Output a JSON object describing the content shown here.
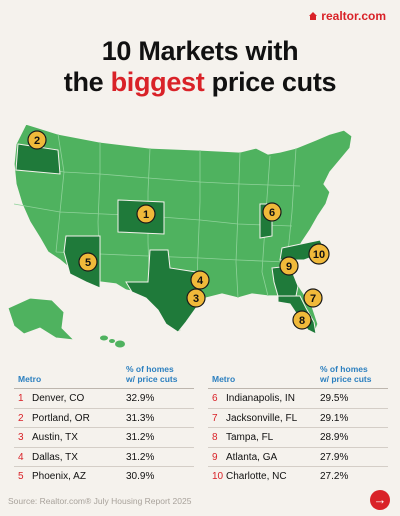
{
  "brand": {
    "logo_text": "realtor.com"
  },
  "title": {
    "line1": "10 Markets with",
    "line2_pre": "the ",
    "line2_highlight": "biggest",
    "line2_post": " price cuts"
  },
  "colors": {
    "accent": "#d92228",
    "map_light": "#4fb25f",
    "map_dark": "#1f7a3a",
    "badge": "#f0b93a",
    "header_blue": "#2b7fbf"
  },
  "table": {
    "header_metro": "Metro",
    "header_pct_1": "% of homes",
    "header_pct_2": "w/ price cuts",
    "rows": [
      {
        "rank": "1",
        "metro": "Denver, CO",
        "value": "32.9%"
      },
      {
        "rank": "2",
        "metro": "Portland, OR",
        "value": "31.3%"
      },
      {
        "rank": "3",
        "metro": "Austin, TX",
        "value": "31.2%"
      },
      {
        "rank": "4",
        "metro": "Dallas, TX",
        "value": "31.2%"
      },
      {
        "rank": "5",
        "metro": "Phoenix, AZ",
        "value": "30.9%"
      },
      {
        "rank": "6",
        "metro": "Indianapolis, IN",
        "value": "29.5%"
      },
      {
        "rank": "7",
        "metro": "Jacksonville, FL",
        "value": "29.1%"
      },
      {
        "rank": "8",
        "metro": "Tampa, FL",
        "value": "28.9%"
      },
      {
        "rank": "9",
        "metro": "Atlanta, GA",
        "value": "27.9%"
      },
      {
        "rank": "10",
        "metro": "Charlotte, NC",
        "value": "27.2%"
      }
    ]
  },
  "map": {
    "badges": [
      {
        "label": "1"
      },
      {
        "label": "2"
      },
      {
        "label": "3"
      },
      {
        "label": "4"
      },
      {
        "label": "5"
      },
      {
        "label": "6"
      },
      {
        "label": "7"
      },
      {
        "label": "8"
      },
      {
        "label": "9"
      },
      {
        "label": "10"
      }
    ]
  },
  "footer": {
    "source": "Source: Realtor.com® July Housing Report 2025",
    "next_icon": "arrow-right-icon"
  }
}
